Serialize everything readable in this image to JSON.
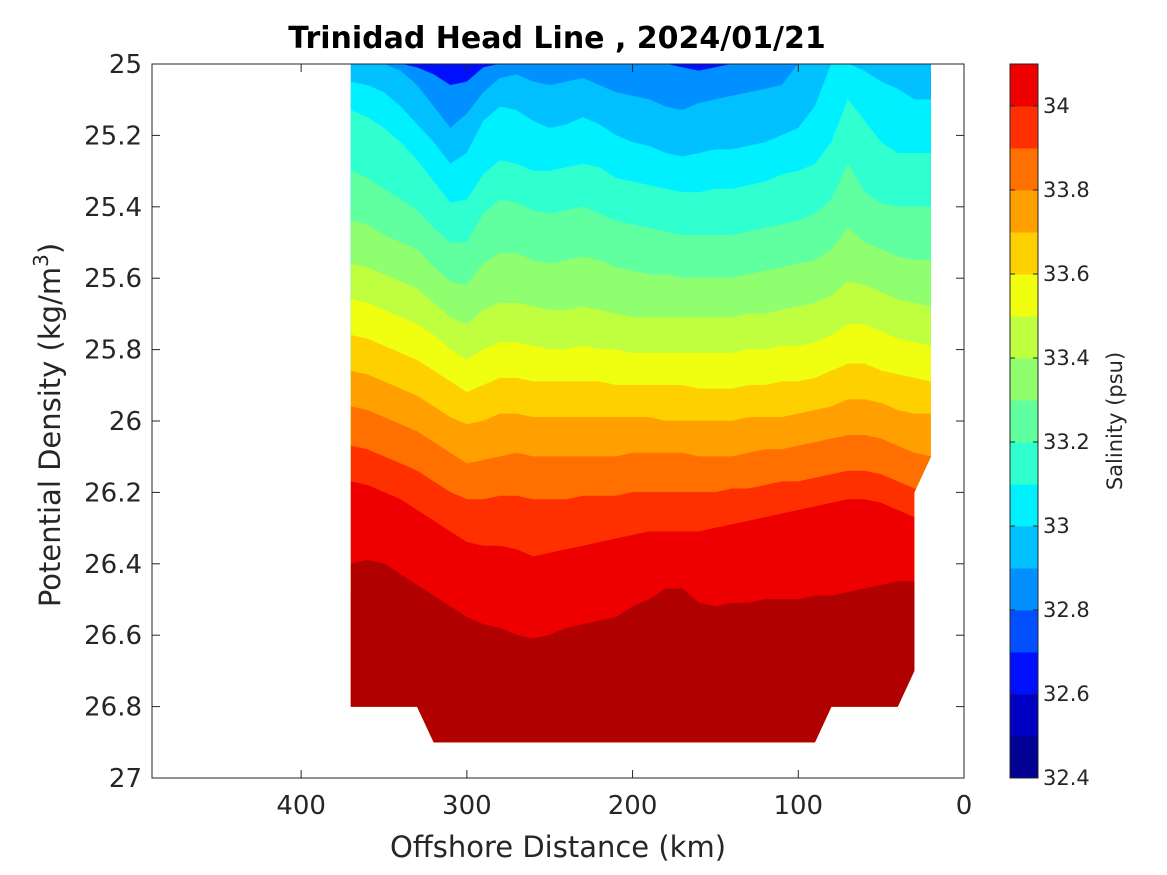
{
  "chart_data": {
    "type": "heatmap",
    "subtype": "filled-contour",
    "title": "Trinidad Head Line , 2024/01/21",
    "xlabel": "Offshore Distance (km)",
    "ylabel_main": "Potential Density (kg/m",
    "ylabel_sup": "3",
    "ylabel_end": ")",
    "colorbar_label": "Salinity (psu)",
    "xlim": [
      490,
      0
    ],
    "x_reversed": true,
    "ylim": [
      25,
      27
    ],
    "y_reversed": true,
    "clim": [
      32.4,
      34.1
    ],
    "colormap": "jet",
    "x_ticks": [
      400,
      300,
      200,
      100,
      0
    ],
    "x_tick_labels": [
      "400",
      "300",
      "200",
      "100",
      "0"
    ],
    "y_ticks": [
      25,
      25.2,
      25.4,
      25.6,
      25.8,
      26,
      26.2,
      26.4,
      26.6,
      26.8,
      27
    ],
    "y_tick_labels": [
      "25",
      "25.2",
      "25.4",
      "25.6",
      "25.8",
      "26",
      "26.2",
      "26.4",
      "26.6",
      "26.8",
      "27"
    ],
    "colorbar_ticks": [
      32.4,
      32.6,
      32.8,
      33,
      33.2,
      33.4,
      33.6,
      33.8,
      34
    ],
    "colorbar_tick_labels": [
      "32.4",
      "32.6",
      "32.8",
      "33",
      "33.2",
      "33.4",
      "33.6",
      "33.8",
      "34"
    ],
    "contour_levels": [
      32.4,
      32.5,
      32.6,
      32.7,
      32.8,
      32.9,
      33.0,
      33.1,
      33.2,
      33.3,
      33.4,
      33.5,
      33.6,
      33.7,
      33.8,
      33.9,
      34.0,
      34.1
    ],
    "level_colors": [
      "#000093",
      "#0000c3",
      "#0010ff",
      "#0050ff",
      "#0090ff",
      "#00c0ff",
      "#00f0ff",
      "#30ffcf",
      "#60ff9f",
      "#90ff6f",
      "#c0ff3f",
      "#f0ff0f",
      "#ffd000",
      "#ffa000",
      "#ff7000",
      "#ff3000",
      "#ef0000",
      "#b00000"
    ],
    "x": [
      370,
      360,
      350,
      340,
      330,
      320,
      310,
      300,
      290,
      280,
      270,
      260,
      250,
      240,
      230,
      220,
      210,
      200,
      190,
      180,
      170,
      160,
      150,
      140,
      130,
      120,
      110,
      100,
      90,
      80,
      70,
      60,
      50,
      40,
      30,
      20
    ],
    "isolines": [
      {
        "level": 32.7,
        "y": [
          25.0,
          25.0,
          25.0,
          25.0,
          25.01,
          25.03,
          25.06,
          25.05,
          25.01,
          25.0,
          25.0,
          25.0,
          25.0,
          25.0,
          25.0,
          25.0,
          25.0,
          25.0,
          25.0,
          25.0,
          25.01,
          25.02,
          25.01,
          25.0,
          25.0,
          25.0,
          25.0,
          25.0,
          25.0,
          25.0,
          25.0,
          25.0,
          25.0,
          25.0,
          25.0,
          25.0
        ]
      },
      {
        "level": 32.8,
        "y": [
          25.0,
          25.0,
          25.0,
          25.02,
          25.06,
          25.12,
          25.18,
          25.14,
          25.08,
          25.04,
          25.03,
          25.05,
          25.06,
          25.05,
          25.04,
          25.06,
          25.08,
          25.09,
          25.1,
          25.12,
          25.13,
          25.11,
          25.1,
          25.09,
          25.08,
          25.07,
          25.06,
          25.0,
          25.0,
          25.0,
          25.0,
          25.0,
          25.0,
          25.0,
          25.0,
          25.0
        ]
      },
      {
        "level": 32.9,
        "y": [
          25.05,
          25.06,
          25.08,
          25.12,
          25.17,
          25.22,
          25.28,
          25.25,
          25.16,
          25.12,
          25.13,
          25.16,
          25.18,
          25.17,
          25.15,
          25.17,
          25.2,
          25.22,
          25.23,
          25.25,
          25.26,
          25.25,
          25.24,
          25.24,
          25.23,
          25.22,
          25.2,
          25.18,
          25.12,
          25.0,
          25.0,
          25.02,
          25.05,
          25.07,
          25.1,
          25.1
        ]
      },
      {
        "level": 33.0,
        "y": [
          25.13,
          25.15,
          25.18,
          25.22,
          25.27,
          25.33,
          25.39,
          25.38,
          25.31,
          25.27,
          25.28,
          25.3,
          25.3,
          25.29,
          25.28,
          25.29,
          25.32,
          25.33,
          25.34,
          25.35,
          25.36,
          25.36,
          25.35,
          25.35,
          25.34,
          25.33,
          25.31,
          25.3,
          25.28,
          25.22,
          25.1,
          25.16,
          25.22,
          25.25,
          25.25,
          25.25
        ]
      },
      {
        "level": 33.1,
        "y": [
          25.3,
          25.32,
          25.35,
          25.38,
          25.41,
          25.46,
          25.5,
          25.5,
          25.42,
          25.38,
          25.39,
          25.41,
          25.42,
          25.41,
          25.4,
          25.42,
          25.44,
          25.45,
          25.46,
          25.47,
          25.48,
          25.48,
          25.48,
          25.48,
          25.47,
          25.46,
          25.45,
          25.44,
          25.42,
          25.38,
          25.28,
          25.36,
          25.39,
          25.4,
          25.4,
          25.4
        ]
      },
      {
        "level": 33.2,
        "y": [
          25.44,
          25.45,
          25.48,
          25.5,
          25.52,
          25.57,
          25.61,
          25.62,
          25.56,
          25.53,
          25.53,
          25.55,
          25.56,
          25.55,
          25.54,
          25.55,
          25.57,
          25.58,
          25.59,
          25.59,
          25.6,
          25.6,
          25.6,
          25.6,
          25.59,
          25.58,
          25.57,
          25.56,
          25.55,
          25.52,
          25.46,
          25.5,
          25.52,
          25.54,
          25.55,
          25.55
        ]
      },
      {
        "level": 33.3,
        "y": [
          25.56,
          25.57,
          25.59,
          25.61,
          25.63,
          25.67,
          25.71,
          25.73,
          25.69,
          25.67,
          25.67,
          25.68,
          25.69,
          25.69,
          25.68,
          25.69,
          25.7,
          25.71,
          25.71,
          25.71,
          25.71,
          25.71,
          25.71,
          25.71,
          25.7,
          25.7,
          25.69,
          25.68,
          25.67,
          25.65,
          25.61,
          25.62,
          25.64,
          25.66,
          25.67,
          25.68
        ]
      },
      {
        "level": 33.4,
        "y": [
          25.66,
          25.67,
          25.69,
          25.71,
          25.73,
          25.76,
          25.8,
          25.83,
          25.8,
          25.78,
          25.78,
          25.79,
          25.8,
          25.8,
          25.79,
          25.8,
          25.8,
          25.81,
          25.81,
          25.81,
          25.81,
          25.81,
          25.81,
          25.81,
          25.8,
          25.8,
          25.79,
          25.79,
          25.78,
          25.76,
          25.73,
          25.73,
          25.75,
          25.77,
          25.78,
          25.79
        ]
      },
      {
        "level": 33.5,
        "y": [
          25.76,
          25.77,
          25.79,
          25.81,
          25.83,
          25.86,
          25.89,
          25.92,
          25.9,
          25.88,
          25.88,
          25.89,
          25.89,
          25.89,
          25.89,
          25.89,
          25.9,
          25.9,
          25.9,
          25.9,
          25.9,
          25.91,
          25.91,
          25.91,
          25.9,
          25.9,
          25.89,
          25.89,
          25.88,
          25.86,
          25.84,
          25.84,
          25.86,
          25.87,
          25.88,
          25.89
        ]
      },
      {
        "level": 33.6,
        "y": [
          25.86,
          25.87,
          25.89,
          25.91,
          25.93,
          25.96,
          25.99,
          26.01,
          26.0,
          25.98,
          25.98,
          25.99,
          25.99,
          25.99,
          25.99,
          25.99,
          25.99,
          25.99,
          25.99,
          26.0,
          26.0,
          26.0,
          26.0,
          26.0,
          25.99,
          25.99,
          25.99,
          25.98,
          25.97,
          25.96,
          25.94,
          25.94,
          25.95,
          25.97,
          25.98,
          25.98
        ]
      },
      {
        "level": 33.7,
        "y": [
          25.96,
          25.97,
          25.99,
          26.01,
          26.03,
          26.06,
          26.09,
          26.12,
          26.11,
          26.1,
          26.09,
          26.1,
          26.1,
          26.1,
          26.1,
          26.1,
          26.1,
          26.09,
          26.09,
          26.09,
          26.09,
          26.1,
          26.1,
          26.1,
          26.09,
          26.08,
          26.08,
          26.07,
          26.06,
          26.05,
          26.04,
          26.04,
          26.05,
          26.07,
          26.09,
          26.1
        ]
      },
      {
        "level": 33.8,
        "y": [
          26.07,
          26.08,
          26.1,
          26.12,
          26.14,
          26.17,
          26.2,
          26.22,
          26.22,
          26.21,
          26.21,
          26.22,
          26.22,
          26.22,
          26.21,
          26.21,
          26.21,
          26.2,
          26.2,
          26.2,
          26.2,
          26.2,
          26.2,
          26.19,
          26.19,
          26.18,
          26.17,
          26.17,
          26.16,
          26.15,
          26.14,
          26.14,
          26.15,
          26.17,
          26.19,
          26.2
        ]
      },
      {
        "level": 33.9,
        "y": [
          26.17,
          26.18,
          26.2,
          26.22,
          26.25,
          26.28,
          26.31,
          26.34,
          26.35,
          26.35,
          26.36,
          26.38,
          26.37,
          26.36,
          26.35,
          26.34,
          26.33,
          26.32,
          26.31,
          26.31,
          26.31,
          26.31,
          26.3,
          26.29,
          26.28,
          26.27,
          26.26,
          26.25,
          26.24,
          26.23,
          26.22,
          26.22,
          26.23,
          26.25,
          26.27,
          26.28
        ]
      },
      {
        "level": 34.0,
        "y": [
          26.4,
          26.39,
          26.4,
          26.43,
          26.46,
          26.49,
          26.52,
          26.55,
          26.57,
          26.58,
          26.6,
          26.61,
          26.6,
          26.58,
          26.57,
          26.56,
          26.55,
          26.52,
          26.5,
          26.47,
          26.47,
          26.51,
          26.52,
          26.51,
          26.51,
          26.5,
          26.5,
          26.5,
          26.49,
          26.49,
          26.48,
          26.47,
          26.46,
          26.45,
          26.45,
          26.45
        ]
      },
      {
        "level": 34.1,
        "y": [
          26.48,
          26.46,
          26.48,
          26.51,
          26.57,
          26.63,
          26.72,
          26.77,
          26.78,
          26.78,
          26.79,
          26.8,
          26.8,
          26.8,
          26.79,
          26.79,
          26.79,
          26.8,
          26.8,
          26.8,
          26.8,
          26.79,
          26.79,
          26.78,
          26.76,
          26.75,
          26.74,
          26.74,
          26.73,
          26.72,
          26.71,
          26.7,
          26.72,
          26.73,
          26.72,
          26.72
        ]
      }
    ]
  }
}
